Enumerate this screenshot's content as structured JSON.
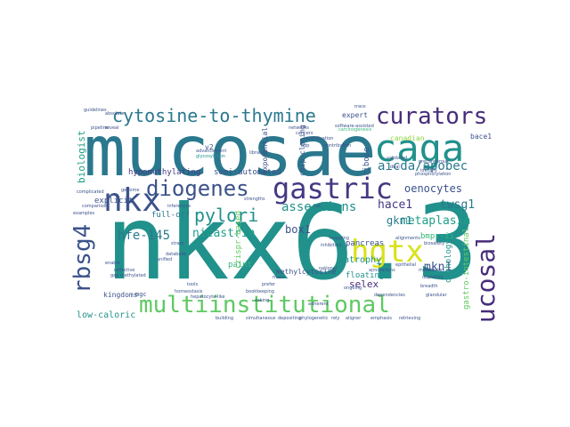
{
  "words": {
    "nkx63": "nkx6.3",
    "mucosae": "mucosae",
    "caga": "caga",
    "curators": "curators",
    "cytosine_to_thymine": "cytosine-to-thymine",
    "diogenes": "diogenes",
    "gastric": "gastric",
    "nkx": "nkx",
    "rbsg4": "rbsg4",
    "hgtx": "hgtx",
    "mucosal": "mucosal",
    "multiinstitutional": "multiinstitutional",
    "pylori": "pylori",
    "aicda_apobec": "aicda/apobec",
    "metaplasia": "metaplasia",
    "oenocytes": "oenocytes",
    "assertions": "assertions",
    "hace1": "hace1",
    "twsg1": "twsg1",
    "gkn1": "gkn1",
    "hfe_145": "hfe-145",
    "box1": "box1",
    "nicastrin": "nicastrin",
    "mkn1": "mkn1",
    "biologist": "biologist",
    "hypomethylating": "hypomethylating",
    "semi_automated": "semi-automated",
    "full_orf": "full-orf",
    "explicit": "explicit",
    "low_caloric": "low-caloric",
    "kingdoms": "kingdoms",
    "selex": "selex",
    "atrophy": "atrophy",
    "floating": "floating",
    "pancreas": "pancreas",
    "ribose": "ribose",
    "paint": "paint",
    "crispr_based": "crispr-based",
    "orthology": "orthology",
    "bmpr_ii": "bmpr-ii",
    "gastro_intestinal": "gastro-intestinal",
    "chip_cloning": "chip-cloning",
    "methylcytosine": "methylcytosine",
    "exponential": "exponential",
    "bace1": "bace1",
    "canadian": "canadian",
    "expert": "expert",
    "v2": "v2",
    "mgc": "mgc",
    "carcinogenesis": "carcinogenesis",
    "software_assisted": "software-assisted",
    "guidelines": "guidelines",
    "pipeline": "pipeline",
    "glycosylation": "glycosylation",
    "advancement": "advancement",
    "libraries": "libraries",
    "validated": "validated",
    "inferences": "inferences",
    "examples": "examples",
    "genome": "genome",
    "complicated": "complicated",
    "phosphorylation": "phosphorylation",
    "modulation": "modulation",
    "depleting": "depleting",
    "biosafety": "biosafety",
    "alignments": "alignments",
    "strengths": "strengths",
    "epithelial": "epithelial",
    "annotations": "annotations",
    "building": "building",
    "simultaneous": "simultaneous",
    "depositing": "depositing",
    "phylogenetic": "phylogenetic",
    "rely": "rely",
    "aligner": "aligner",
    "emphasis": "emphasis",
    "retrieving": "retrieving",
    "glandular": "glandular",
    "dependencies": "dependencies",
    "breadth": "breadth",
    "ongoing": "ongoing",
    "adherent": "adherent",
    "national": "national",
    "homeostasis": "homeostasis",
    "hepatocyte_like": "hepatocyte-like",
    "bookkeeping": "bookkeeping",
    "prefer": "prefer",
    "mass": "mass",
    "asking": "asking",
    "tools": "tools",
    "reveal": "reveal",
    "track": "track",
    "networks": "networks",
    "cancers": "cancers",
    "amplification": "amplification",
    "contribution": "contribution",
    "precancerous": "precancerous",
    "identify": "identify",
    "dual": "dual",
    "adp": "adp",
    "enable": "enable",
    "comparison": "comparison",
    "absolute": "absolute",
    "gap_methylated": "gap methylated",
    "reflective": "reflective",
    "unified": "unified",
    "database": "database",
    "strain": "strain",
    "inhibitory": "inhibitory",
    "mapping": "mapping",
    "cell": "cell"
  },
  "colors": {
    "teal": "#21918c",
    "teal_dark": "#2a788e",
    "blue": "#3b528b",
    "purple": "#472d7b",
    "indigo": "#443983",
    "green": "#35b779",
    "green_dark": "#1f9e89",
    "lime": "#90d743",
    "yellow": "#d8e219",
    "mint": "#5ec962",
    "light": "#addc30"
  }
}
